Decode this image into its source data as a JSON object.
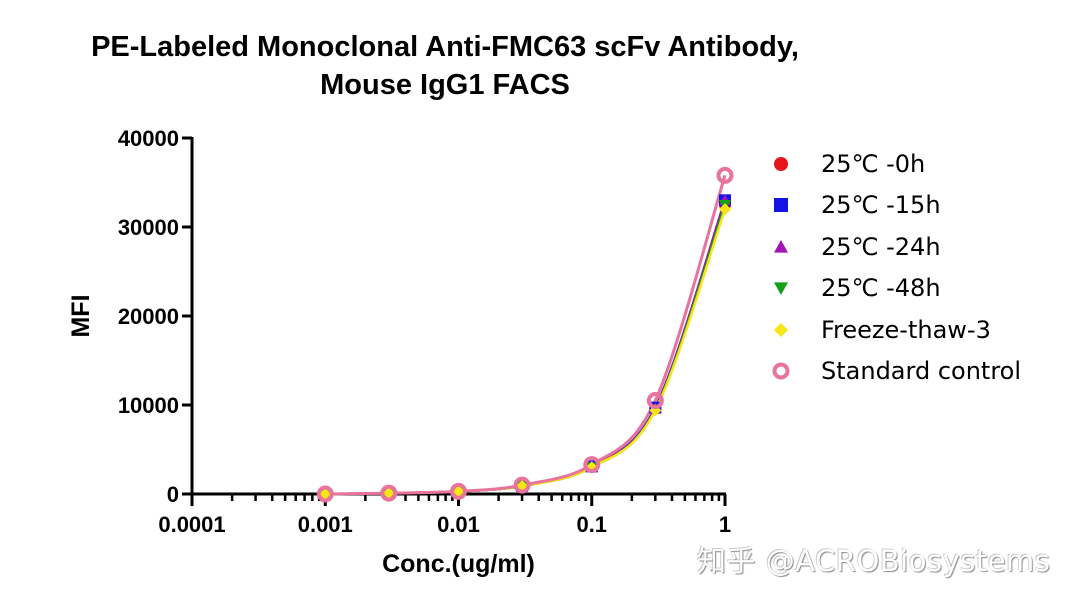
{
  "chart_data": {
    "type": "scatter",
    "title": "PE-Labeled Monoclonal Anti-FMC63 scFv Antibody, Mouse IgG1 FACS",
    "title_lines": [
      "PE-Labeled Monoclonal Anti-FMC63 scFv Antibody,",
      "Mouse IgG1 FACS"
    ],
    "xlabel": "Conc.(ug/ml)",
    "ylabel": "MFI",
    "xscale": "log",
    "xlim": [
      0.0001,
      1
    ],
    "ylim": [
      0,
      40000
    ],
    "xticks": [
      "0.0001",
      "0.001",
      "0.01",
      "0.1",
      "1"
    ],
    "yticks": [
      "0",
      "10000",
      "20000",
      "30000",
      "40000"
    ],
    "x": [
      0.001,
      0.003,
      0.01,
      0.03,
      0.1,
      0.3,
      1
    ],
    "legend_position": "right",
    "grid": false,
    "series": [
      {
        "name": "25℃ -0h",
        "marker": "circle",
        "color": "#e8141c",
        "values": [
          0,
          100,
          300,
          900,
          3100,
          9600,
          32500
        ]
      },
      {
        "name": "25℃ -15h",
        "marker": "square",
        "color": "#1414e6",
        "values": [
          0,
          100,
          300,
          900,
          3100,
          9700,
          33000
        ]
      },
      {
        "name": "25℃ -24h",
        "marker": "triangle-up",
        "color": "#a014b4",
        "values": [
          0,
          100,
          300,
          900,
          3100,
          9600,
          33000
        ]
      },
      {
        "name": "25℃ -48h",
        "marker": "triangle-down",
        "color": "#14a014",
        "values": [
          0,
          100,
          300,
          900,
          3000,
          9500,
          32500
        ]
      },
      {
        "name": "Freeze-thaw-3",
        "marker": "diamond",
        "color": "#f5e614",
        "values": [
          0,
          100,
          300,
          900,
          3000,
          9400,
          32000
        ]
      },
      {
        "name": "Standard control",
        "marker": "open-circle",
        "color": "#e8739c",
        "values": [
          0,
          100,
          300,
          1000,
          3300,
          10500,
          35800
        ]
      }
    ]
  },
  "watermark": "知乎 @ACROBiosystems"
}
